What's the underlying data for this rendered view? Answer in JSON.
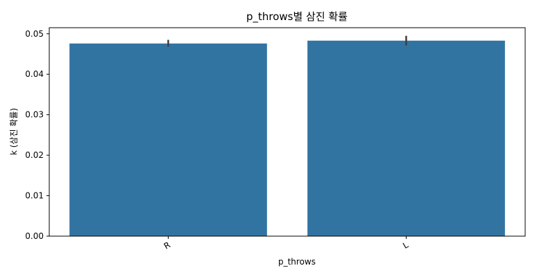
{
  "chart_data": {
    "type": "bar",
    "title": "p_throws별 삼진 확률",
    "xlabel": "p_throws",
    "ylabel": "k (삼진 확률)",
    "categories": [
      "R",
      "L"
    ],
    "values": [
      0.0476,
      0.0483
    ],
    "error_low": [
      0.0468,
      0.0471
    ],
    "error_high": [
      0.0485,
      0.0495
    ],
    "ylim": [
      0,
      0.0515
    ],
    "yticks": [
      0.0,
      0.01,
      0.02,
      0.03,
      0.04,
      0.05
    ],
    "ytick_labels": [
      "0.00",
      "0.01",
      "0.02",
      "0.03",
      "0.04",
      "0.05"
    ],
    "bar_color": "#3274a1",
    "error_color": "#3f3f3f",
    "grid": false,
    "legend": "none"
  }
}
